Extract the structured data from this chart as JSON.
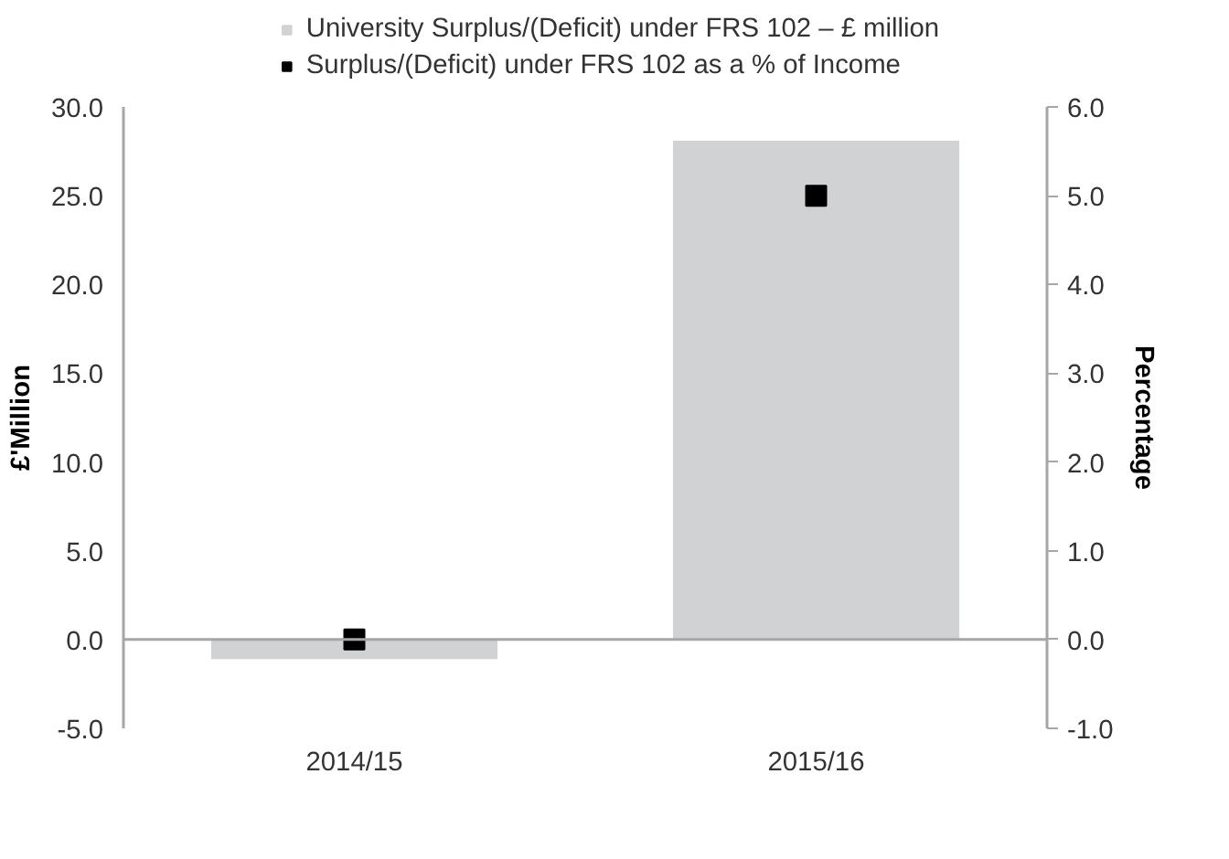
{
  "chart_data": {
    "type": "bar",
    "categories": [
      "2014/15",
      "2015/16"
    ],
    "series": [
      {
        "name": "University Surplus/(Deficit) under FRS 102 – £ million",
        "color": "#d1d2d4",
        "values": [
          -1.1,
          28.1
        ]
      },
      {
        "name": "Surplus/(Deficit) under FRS 102 as a % of Income",
        "type": "scatter",
        "marker": "square",
        "axis": "y2",
        "color": "#000000",
        "values": [
          0.0,
          5.0
        ]
      }
    ],
    "ylabel": "£'Million",
    "y2label": "Percentage",
    "ylim": [
      -5,
      30
    ],
    "yticks": [
      {
        "value": -5,
        "label": "-5.0"
      },
      {
        "value": 0,
        "label": "0.0"
      },
      {
        "value": 5,
        "label": "5.0"
      },
      {
        "value": 10,
        "label": "10.0"
      },
      {
        "value": 15,
        "label": "15.0"
      },
      {
        "value": 20,
        "label": "20.0"
      },
      {
        "value": 25,
        "label": "25.0"
      },
      {
        "value": 30,
        "label": "30.0"
      }
    ],
    "y2lim": [
      -1,
      6
    ],
    "y2ticks": [
      {
        "value": -1,
        "label": "-1.0"
      },
      {
        "value": 0,
        "label": "0.0"
      },
      {
        "value": 1,
        "label": "1.0"
      },
      {
        "value": 2,
        "label": "2.0"
      },
      {
        "value": 3,
        "label": "3.0"
      },
      {
        "value": 4,
        "label": "4.0"
      },
      {
        "value": 5,
        "label": "5.0"
      },
      {
        "value": 6,
        "label": "6.0"
      }
    ],
    "ref_lines": [
      {
        "axis": "y",
        "value": 0,
        "color": "#a6a6a6"
      }
    ],
    "grid": false,
    "legend": "top"
  }
}
